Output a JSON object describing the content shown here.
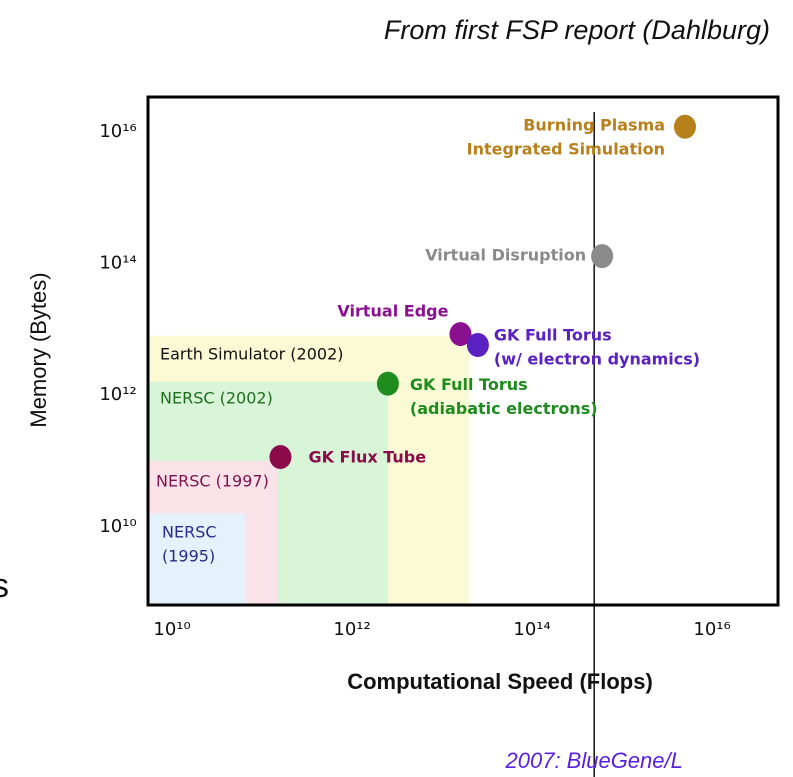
{
  "chart_data": {
    "type": "scatter",
    "title": "From first FSP report (Dahlburg)",
    "fragment": "s",
    "xlabel": "Computational Speed (Flops)",
    "ylabel": "Memory (Bytes)",
    "log_x": true,
    "log_y": true,
    "xlim": [
      5400000000.0,
      5.4e+16
    ],
    "ylim": [
      650000000.0,
      3.4e+16
    ],
    "xticks": [
      {
        "value": 10000000000.0,
        "label": "10¹⁰"
      },
      {
        "value": 1000000000000.0,
        "label": "10¹²"
      },
      {
        "value": 100000000000000.0,
        "label": "10¹⁴"
      },
      {
        "value": 1e+16,
        "label": "10¹⁶"
      }
    ],
    "yticks": [
      {
        "value": 10000000000.0,
        "label": "10¹⁰"
      },
      {
        "value": 1000000000000.0,
        "label": "10¹²"
      },
      {
        "value": 100000000000000.0,
        "label": "10¹⁴"
      },
      {
        "value": 1e+16,
        "label": "10¹⁶"
      }
    ],
    "regions": [
      {
        "name": [
          "Earth Simulator (2002)"
        ],
        "color": "#fafad4",
        "text_color": "#111111",
        "x": 20000000000000.0,
        "y": 8000000000000.0
      },
      {
        "name": [
          "NERSC (2002)"
        ],
        "color": "#d8f5d8",
        "text_color": "#1e6e1e",
        "x": 2500000000000.0,
        "y": 1600000000000.0
      },
      {
        "name": [
          "NERSC (1997)"
        ],
        "color": "#fbe2e8",
        "text_color": "#7a1450",
        "x": 150000000000.0,
        "y": 100000000000.0
      },
      {
        "name": [
          "NERSC",
          "(1995)"
        ],
        "color": "#e6f2fb",
        "text_color": "#2a2a8a",
        "x": 65000000000.0,
        "y": 16000000000.0
      }
    ],
    "points": [
      {
        "label": [
          "Burning Plasma",
          "Integrated Simulation"
        ],
        "color": "#b8801a",
        "x": 5000000000000000.0,
        "y": 1.2e+16
      },
      {
        "label": [
          "Virtual Disruption"
        ],
        "color": "#8a8a8a",
        "x": 600000000000000.0,
        "y": 130000000000000.0
      },
      {
        "label": [
          "Virtual Edge"
        ],
        "color": "#8a1090",
        "x": 16000000000000.0,
        "y": 8500000000000.0
      },
      {
        "label": [
          "GK Full Torus",
          "(w/ electron dynamics)"
        ],
        "color": "#5a20c0",
        "x": 25000000000000.0,
        "y": 5800000000000.0
      },
      {
        "label": [
          "GK Full Torus",
          "(adiabatic electrons)"
        ],
        "color": "#1e8c1e",
        "x": 2500000000000.0,
        "y": 1500000000000.0
      },
      {
        "label": [
          "GK Flux Tube"
        ],
        "color": "#8a0a4a",
        "x": 160000000000.0,
        "y": 115000000000.0
      }
    ],
    "vline": {
      "x": 490000000000000.0,
      "label": "2007: BlueGene/L",
      "color": "#5a20e0"
    }
  }
}
